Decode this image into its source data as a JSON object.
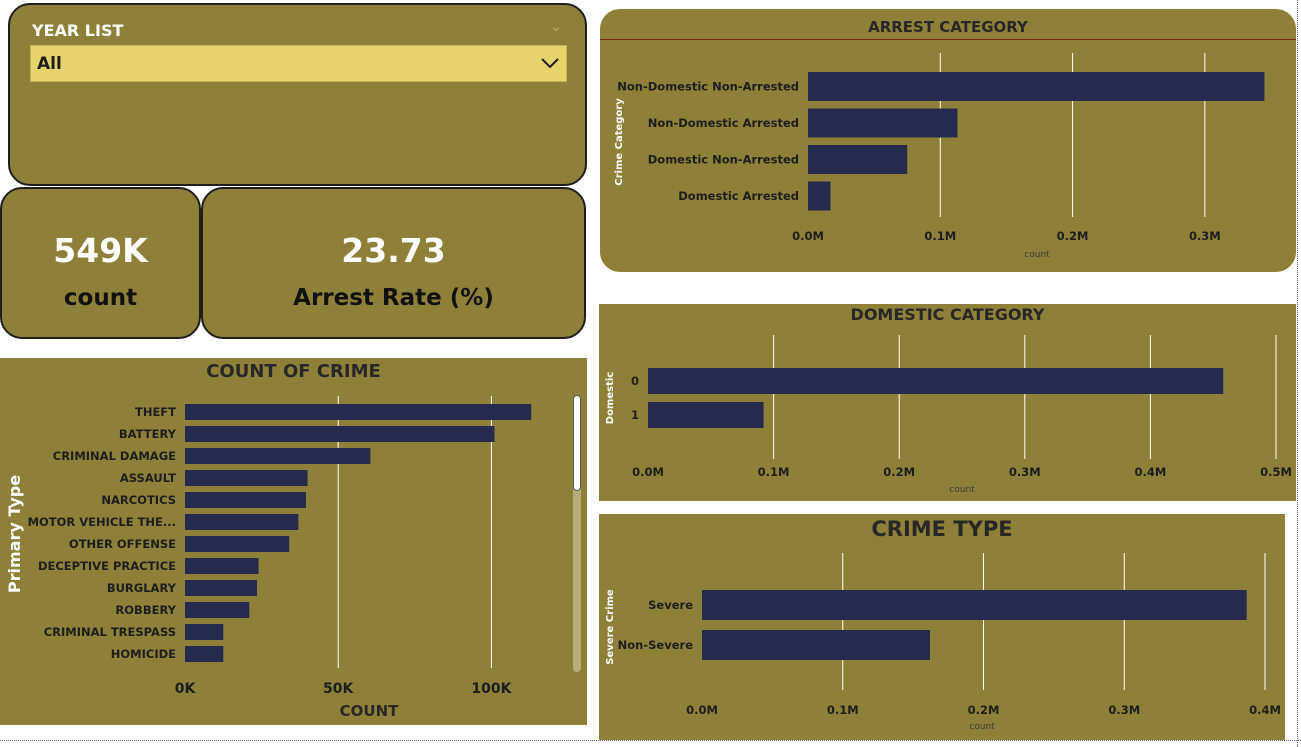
{
  "slicer": {
    "title": "YEAR LIST",
    "selected": "All"
  },
  "kpis": {
    "count": {
      "value": "549K",
      "label": "count"
    },
    "arrest_rate": {
      "value": "23.73",
      "label": "Arrest Rate (%)"
    }
  },
  "colors": {
    "panel": "#8f8039",
    "bar": "#272a4f",
    "slicer_fill": "#e7d36b"
  },
  "chart_data": [
    {
      "id": "arrest",
      "type": "bar",
      "orientation": "horizontal",
      "title": "ARREST CATEGORY",
      "ylabel": "Crime Category",
      "xlabel": "count",
      "categories": [
        "Non-Domestic Non-Arrested",
        "Non-Domestic Arrested",
        "Domestic Non-Arrested",
        "Domestic Arrested"
      ],
      "values": [
        345000,
        113000,
        75000,
        17000
      ],
      "ticks": [
        0,
        100000,
        200000,
        300000
      ],
      "tick_labels": [
        "0.0M",
        "0.1M",
        "0.2M",
        "0.3M"
      ],
      "xlim": [
        0,
        350000
      ],
      "grid": true
    },
    {
      "id": "crime",
      "type": "bar",
      "orientation": "horizontal",
      "title": "COUNT OF CRIME",
      "ylabel": "Primary Type",
      "xlabel": "COUNT",
      "categories": [
        "THEFT",
        "BATTERY",
        "CRIMINAL DAMAGE",
        "ASSAULT",
        "NARCOTICS",
        "MOTOR VEHICLE THE...",
        "OTHER OFFENSE",
        "DECEPTIVE PRACTICE",
        "BURGLARY",
        "ROBBERY",
        "CRIMINAL TRESPASS",
        "HOMICIDE"
      ],
      "values": [
        113000,
        101000,
        60500,
        40000,
        39500,
        37000,
        34000,
        24000,
        23500,
        21000,
        12500,
        12500
      ],
      "ticks": [
        0,
        50000,
        100000
      ],
      "tick_labels": [
        "0K",
        "50K",
        "100K"
      ],
      "xlim": [
        0,
        125000
      ],
      "grid": true
    },
    {
      "id": "domestic",
      "type": "bar",
      "orientation": "horizontal",
      "title": "DOMESTIC CATEGORY",
      "ylabel": "Domestic",
      "xlabel": "count",
      "categories": [
        "0",
        "1"
      ],
      "values": [
        458000,
        92000
      ],
      "ticks": [
        0,
        100000,
        200000,
        300000,
        400000,
        500000
      ],
      "tick_labels": [
        "0.0M",
        "0.1M",
        "0.2M",
        "0.3M",
        "0.4M",
        "0.5M"
      ],
      "xlim": [
        0,
        500000
      ],
      "grid": true
    },
    {
      "id": "type",
      "type": "bar",
      "orientation": "horizontal",
      "title": "CRIME TYPE",
      "ylabel": "Severe Crime",
      "xlabel": "count",
      "categories": [
        "Severe",
        "Non-Severe"
      ],
      "values": [
        387000,
        162000
      ],
      "ticks": [
        0,
        100000,
        200000,
        300000,
        400000
      ],
      "tick_labels": [
        "0.0M",
        "0.1M",
        "0.2M",
        "0.3M",
        "0.4M"
      ],
      "xlim": [
        0,
        400000
      ],
      "grid": true
    }
  ]
}
